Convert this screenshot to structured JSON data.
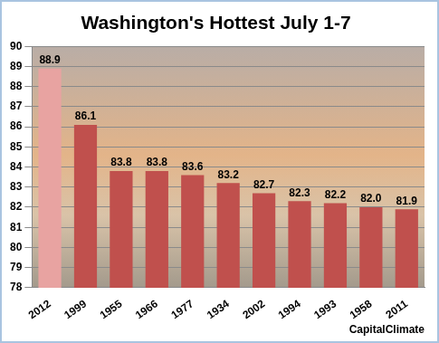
{
  "chart_data": {
    "type": "bar",
    "title": "Washington's Hottest July 1-7",
    "categories": [
      "2012",
      "1999",
      "1955",
      "1966",
      "1977",
      "1934",
      "2002",
      "1994",
      "1993",
      "1958",
      "2011"
    ],
    "values": [
      88.9,
      86.1,
      83.8,
      83.8,
      83.6,
      83.2,
      82.7,
      82.3,
      82.2,
      82.0,
      81.9
    ],
    "value_labels": [
      "88.9",
      "86.1",
      "83.8",
      "83.8",
      "83.6",
      "83.2",
      "82.7",
      "82.3",
      "82.2",
      "82.0",
      "81.9"
    ],
    "colors": [
      "#e8a3a1",
      "#c0504d",
      "#c0504d",
      "#c0504d",
      "#c0504d",
      "#c0504d",
      "#c0504d",
      "#c0504d",
      "#c0504d",
      "#c0504d",
      "#c0504d"
    ],
    "ylim": [
      78,
      90
    ],
    "yticks": [
      78,
      79,
      80,
      81,
      82,
      83,
      84,
      85,
      86,
      87,
      88,
      89,
      90
    ],
    "grid": true,
    "data_labels": true,
    "annotations": [
      "CapitalClimate"
    ]
  }
}
